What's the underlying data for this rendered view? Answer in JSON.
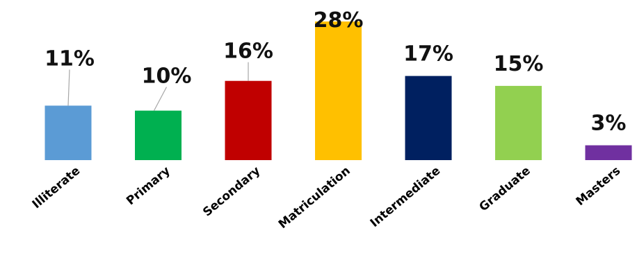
{
  "chart_data": {
    "type": "bar",
    "categories": [
      "Illiterate",
      "Primary",
      "Secondary",
      "Matriculation",
      "Intermediate",
      "Graduate",
      "Masters"
    ],
    "values": [
      11,
      10,
      16,
      28,
      17,
      15,
      3
    ],
    "value_labels": [
      "11%",
      "10%",
      "16%",
      "28%",
      "17%",
      "15%",
      "3%"
    ],
    "colors": [
      "#5b9bd5",
      "#00b050",
      "#c00000",
      "#ffc000",
      "#002060",
      "#92d050",
      "#7030a0"
    ],
    "unit": "%",
    "title": "",
    "xlabel": "",
    "ylabel": "",
    "ylim": [
      0,
      28
    ],
    "grid": false,
    "legend": "none"
  }
}
